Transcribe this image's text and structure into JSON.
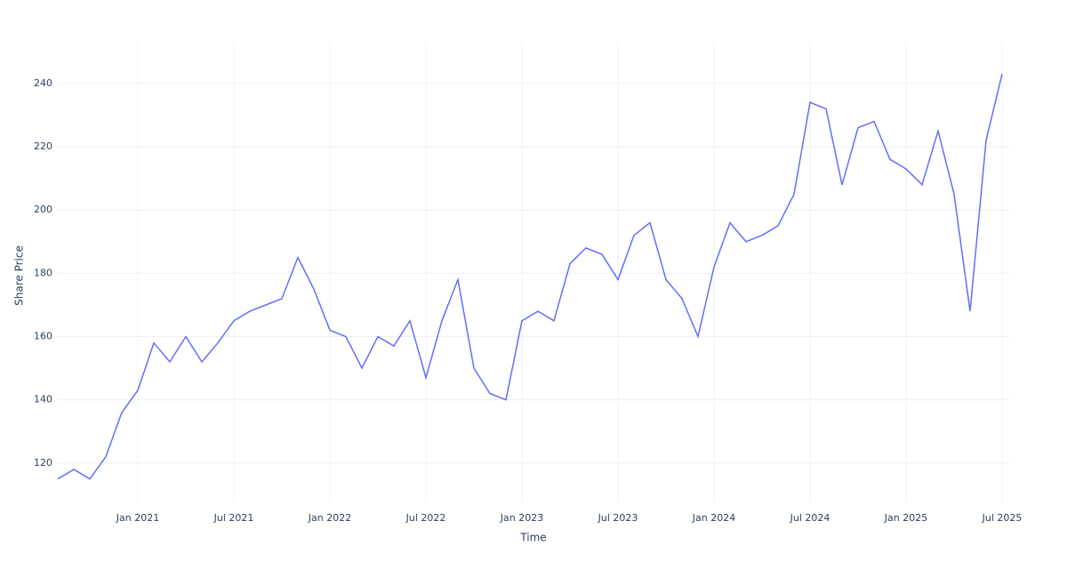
{
  "chart_data": {
    "type": "line",
    "x_label": "Time",
    "y_label": "Share Price",
    "x": [
      "2020-08",
      "2020-09",
      "2020-10",
      "2020-11",
      "2020-12",
      "2021-01",
      "2021-02",
      "2021-03",
      "2021-04",
      "2021-05",
      "2021-06",
      "2021-07",
      "2021-08",
      "2021-09",
      "2021-10",
      "2021-11",
      "2021-12",
      "2022-01",
      "2022-02",
      "2022-03",
      "2022-04",
      "2022-05",
      "2022-06",
      "2022-07",
      "2022-08",
      "2022-09",
      "2022-10",
      "2022-11",
      "2022-12",
      "2023-01",
      "2023-02",
      "2023-03",
      "2023-04",
      "2023-05",
      "2023-06",
      "2023-07",
      "2023-08",
      "2023-09",
      "2023-10",
      "2023-11",
      "2023-12",
      "2024-01",
      "2024-02",
      "2024-03",
      "2024-04",
      "2024-05",
      "2024-06",
      "2024-07",
      "2024-08",
      "2024-09",
      "2024-10",
      "2024-11",
      "2024-12",
      "2025-01",
      "2025-02",
      "2025-03",
      "2025-04",
      "2025-05",
      "2025-06",
      "2025-07"
    ],
    "series": [
      {
        "name": "Share Price",
        "color": "#636efa",
        "values": [
          115,
          118,
          115,
          122,
          136,
          143,
          158,
          152,
          160,
          152,
          158,
          165,
          168,
          170,
          172,
          185,
          175,
          162,
          160,
          150,
          160,
          157,
          165,
          147,
          165,
          178,
          150,
          142,
          140,
          165,
          168,
          165,
          183,
          188,
          186,
          178,
          192,
          196,
          178,
          172,
          160,
          182,
          196,
          190,
          192,
          195,
          205,
          234,
          232,
          208,
          226,
          228,
          216,
          213,
          208,
          225,
          205,
          168,
          222,
          243
        ]
      }
    ],
    "xlim": [
      "2020-08",
      "2025-07"
    ],
    "xticks": [
      {
        "value": "2021-01",
        "label": "Jan 2021"
      },
      {
        "value": "2021-07",
        "label": "Jul 2021"
      },
      {
        "value": "2022-01",
        "label": "Jan 2022"
      },
      {
        "value": "2022-07",
        "label": "Jul 2022"
      },
      {
        "value": "2023-01",
        "label": "Jan 2023"
      },
      {
        "value": "2023-07",
        "label": "Jul 2023"
      },
      {
        "value": "2024-01",
        "label": "Jan 2024"
      },
      {
        "value": "2024-07",
        "label": "Jul 2024"
      },
      {
        "value": "2025-01",
        "label": "Jan 2025"
      },
      {
        "value": "2025-07",
        "label": "Jul 2025"
      }
    ],
    "ylim": [
      107.6,
      252.9
    ],
    "yticks": [
      120,
      140,
      160,
      180,
      200,
      220,
      240
    ],
    "grid": true
  }
}
